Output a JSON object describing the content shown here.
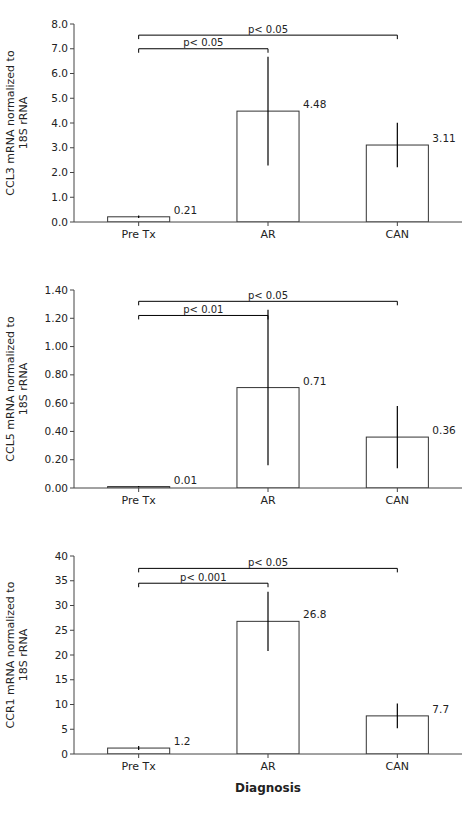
{
  "chart_data": [
    {
      "type": "bar",
      "ylabel": "CCL3 mRNA normalized to\n18S rRNA",
      "categories": [
        "Pre Tx",
        "AR",
        "CAN"
      ],
      "values": [
        0.21,
        4.48,
        3.11
      ],
      "errors": [
        0.05,
        2.2,
        0.9
      ],
      "color": "#ffffff",
      "ylim": [
        0,
        8.0
      ],
      "yticks": [
        {
          "value": 0.0,
          "label": "0.0"
        },
        {
          "value": 1.0,
          "label": "1.0"
        },
        {
          "value": 2.0,
          "label": "2.0"
        },
        {
          "value": 3.0,
          "label": "3.0"
        },
        {
          "value": 4.0,
          "label": "4.0"
        },
        {
          "value": 5.0,
          "label": "5.0"
        },
        {
          "value": 6.0,
          "label": "6.0"
        },
        {
          "value": 7.0,
          "label": "7.0"
        },
        {
          "value": 8.0,
          "label": "8.0"
        }
      ],
      "data_labels": true,
      "grid": false,
      "annotations": [
        {
          "text": "p< 0.05",
          "x": [
            "Pre Tx",
            "AR"
          ],
          "y": 7.0
        },
        {
          "text": "p< 0.05",
          "x": [
            "Pre Tx",
            "CAN"
          ],
          "y": 7.55
        }
      ]
    },
    {
      "type": "bar",
      "ylabel": "CCL5 mRNA normalized to\n18S rRNA",
      "categories": [
        "Pre Tx",
        "AR",
        "CAN"
      ],
      "values": [
        0.01,
        0.71,
        0.36
      ],
      "errors": [
        0.005,
        0.55,
        0.22
      ],
      "color": "#ffffff",
      "ylim": [
        0,
        1.4
      ],
      "yticks": [
        {
          "value": 0.0,
          "label": "0.00"
        },
        {
          "value": 0.2,
          "label": "0.20"
        },
        {
          "value": 0.4,
          "label": "0.40"
        },
        {
          "value": 0.6,
          "label": "0.60"
        },
        {
          "value": 0.8,
          "label": "0.80"
        },
        {
          "value": 1.0,
          "label": "1.00"
        },
        {
          "value": 1.2,
          "label": "1.20"
        },
        {
          "value": 1.4,
          "label": "1.40"
        }
      ],
      "data_labels": true,
      "grid": false,
      "annotations": [
        {
          "text": "p< 0.01",
          "x": [
            "Pre Tx",
            "AR"
          ],
          "y": 1.22
        },
        {
          "text": "p< 0.05",
          "x": [
            "Pre Tx",
            "CAN"
          ],
          "y": 1.32
        }
      ]
    },
    {
      "type": "bar",
      "ylabel": "CCR1 mRNA normalized to\n18S rRNA",
      "xlabel": "Diagnosis",
      "categories": [
        "Pre Tx",
        "AR",
        "CAN"
      ],
      "values": [
        1.2,
        26.8,
        7.7
      ],
      "errors": [
        0.4,
        6.0,
        2.5
      ],
      "color": "#ffffff",
      "ylim": [
        0,
        40
      ],
      "yticks": [
        0,
        5,
        10,
        15,
        20,
        25,
        30,
        35,
        40
      ],
      "data_labels": true,
      "grid": false,
      "annotations": [
        {
          "text": "p< 0.001",
          "x": [
            "Pre Tx",
            "AR"
          ],
          "y": 34.5
        },
        {
          "text": "p< 0.05",
          "x": [
            "Pre Tx",
            "CAN"
          ],
          "y": 37.5
        }
      ]
    }
  ]
}
